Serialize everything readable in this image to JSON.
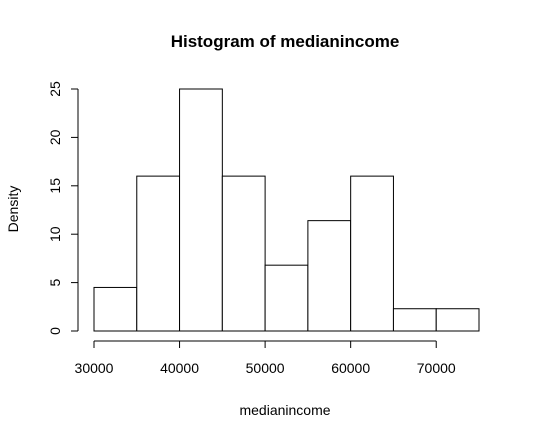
{
  "chart_data": {
    "type": "bar",
    "title": "Histogram of medianincome",
    "xlabel": "medianincome",
    "ylabel": "Density",
    "bins": [
      {
        "start": 30000,
        "end": 35000,
        "value": 4.5
      },
      {
        "start": 35000,
        "end": 40000,
        "value": 16
      },
      {
        "start": 40000,
        "end": 45000,
        "value": 25
      },
      {
        "start": 45000,
        "end": 50000,
        "value": 16
      },
      {
        "start": 50000,
        "end": 55000,
        "value": 6.8
      },
      {
        "start": 55000,
        "end": 60000,
        "value": 11.4
      },
      {
        "start": 60000,
        "end": 65000,
        "value": 16
      },
      {
        "start": 65000,
        "end": 70000,
        "value": 2.3
      },
      {
        "start": 70000,
        "end": 75000,
        "value": 2.3
      }
    ],
    "xlim": [
      30000,
      75000
    ],
    "ylim": [
      0,
      25
    ],
    "x_ticks": [
      {
        "value": 30000,
        "label": "30000"
      },
      {
        "value": 40000,
        "label": "40000"
      },
      {
        "value": 50000,
        "label": "50000"
      },
      {
        "value": 60000,
        "label": "60000"
      },
      {
        "value": 70000,
        "label": "70000"
      }
    ],
    "y_ticks": [
      {
        "value": 0,
        "label": "0"
      },
      {
        "value": 5,
        "label": "5"
      },
      {
        "value": 10,
        "label": "10"
      },
      {
        "value": 15,
        "label": "15"
      },
      {
        "value": 20,
        "label": "20"
      },
      {
        "value": 25,
        "label": "25"
      }
    ],
    "grid": false,
    "legend": "none"
  }
}
